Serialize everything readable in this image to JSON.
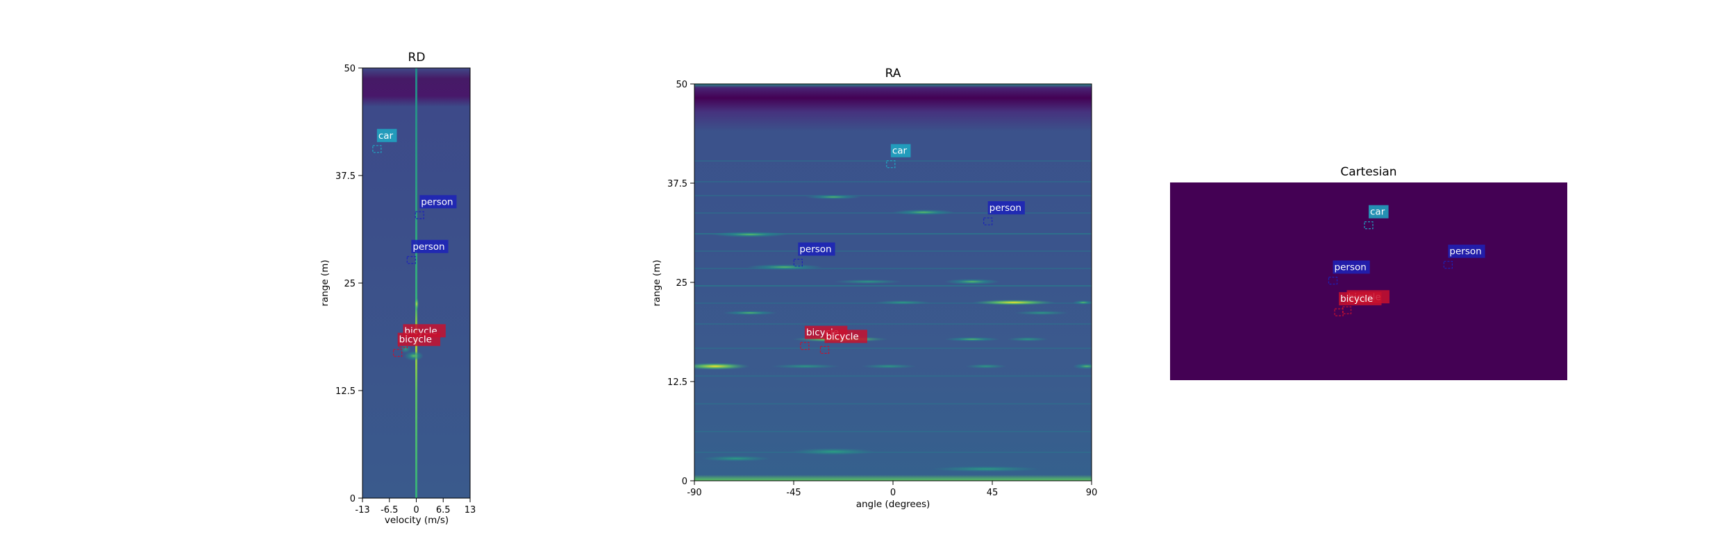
{
  "colors": {
    "car": "#1fa9c4",
    "person": "#1c22b8",
    "bicycle": "#c8102e",
    "viridis_dark": "#440154",
    "viridis_low": "#3b528b",
    "viridis_mid": "#21918c",
    "viridis_high": "#5ec962",
    "viridis_top": "#fde725"
  },
  "chart_data": [
    {
      "id": "rd",
      "type": "heatmap",
      "title": "RD",
      "xlabel": "velocity (m/s)",
      "ylabel": "range (m)",
      "xlim": [
        -13,
        13
      ],
      "ylim": [
        0,
        50
      ],
      "xticks": [
        -13,
        -6.5,
        0,
        6.5,
        13
      ],
      "xtick_labels": [
        "-13",
        "-6.5",
        "0",
        "6.5",
        "13"
      ],
      "yticks": [
        0,
        12.5,
        25,
        37.5,
        50
      ],
      "ytick_labels": [
        "0",
        "12.5",
        "25",
        "37.5",
        "50"
      ],
      "detections": [
        {
          "label": "car",
          "class": "car",
          "x": -9.5,
          "y": 40.5
        },
        {
          "label": "person",
          "class": "person",
          "x": 0.8,
          "y": 32.8
        },
        {
          "label": "person",
          "class": "person",
          "x": -1.2,
          "y": 27.6
        },
        {
          "label": "bicycle",
          "class": "bicycle",
          "x": -3.2,
          "y": 17.8
        },
        {
          "label": "bicycle",
          "class": "bicycle",
          "x": -4.5,
          "y": 16.8
        }
      ]
    },
    {
      "id": "ra",
      "type": "heatmap",
      "title": "RA",
      "xlabel": "angle (degrees)",
      "ylabel": "range (m)",
      "xlim": [
        -90,
        90
      ],
      "ylim": [
        0,
        50
      ],
      "xticks": [
        -90,
        -45,
        0,
        45,
        90
      ],
      "xtick_labels": [
        "-90",
        "-45",
        "0",
        "45",
        "90"
      ],
      "yticks": [
        0,
        12.5,
        25,
        37.5,
        50
      ],
      "ytick_labels": [
        "0",
        "12.5",
        "25",
        "37.5",
        "50"
      ],
      "detections": [
        {
          "label": "car",
          "class": "car",
          "x": -1,
          "y": 39.8
        },
        {
          "label": "person",
          "class": "person",
          "x": 43,
          "y": 32.6
        },
        {
          "label": "person",
          "class": "person",
          "x": -43,
          "y": 27.4
        },
        {
          "label": "bicycle",
          "class": "bicycle",
          "x": -40,
          "y": 16.9
        },
        {
          "label": "bicycle",
          "class": "bicycle",
          "x": -31,
          "y": 16.4
        }
      ]
    },
    {
      "id": "cart",
      "type": "heatmap",
      "title": "Cartesian",
      "detections": [
        {
          "label": "car",
          "class": "car",
          "x": 0.5,
          "y": 0.78
        },
        {
          "label": "person",
          "class": "person",
          "x": 0.7,
          "y": 0.58
        },
        {
          "label": "person",
          "class": "person",
          "x": 0.41,
          "y": 0.5
        },
        {
          "label": "bicycle",
          "class": "bicycle",
          "x": 0.445,
          "y": 0.35
        },
        {
          "label": "bicycle",
          "class": "bicycle",
          "x": 0.425,
          "y": 0.34
        }
      ]
    }
  ]
}
